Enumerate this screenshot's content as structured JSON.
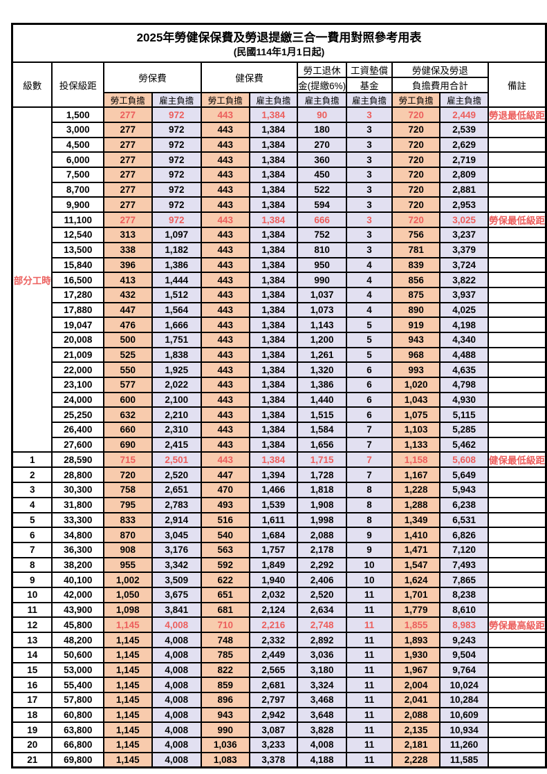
{
  "title": "2025年勞健保保費及勞退提繳三合一費用對照參考用表",
  "subtitle": "(民國114年1月1日起)",
  "header": {
    "level": "級數",
    "bracket": "投保級距",
    "labor_ins": "勞保費",
    "health_ins": "健保費",
    "pension_line1": "勞工退休",
    "pension_line2": "金(提繳6%)",
    "arrears_line1": "工資墊償",
    "arrears_line2": "基金",
    "total_line1": "勞健保及勞退",
    "total_line2": "負擔費用合計",
    "employee": "勞工負擔",
    "employer": "雇主負擔",
    "remark": "備註"
  },
  "side_label": "部分工時",
  "colors": {
    "employee_bg": "#F8CBAD",
    "employer_bg": "#E2E0F1",
    "highlight_text": "#EC5E5C",
    "border": "#000000"
  },
  "rows": [
    {
      "level": "",
      "bracket": "1,500",
      "labor_emp": "277",
      "labor_er": "972",
      "health_emp": "443",
      "health_er": "1,384",
      "pension": "90",
      "arrears": "3",
      "total_emp": "720",
      "total_er": "2,449",
      "remark": "勞退最低級距",
      "highlight": true
    },
    {
      "level": "",
      "bracket": "3,000",
      "labor_emp": "277",
      "labor_er": "972",
      "health_emp": "443",
      "health_er": "1,384",
      "pension": "180",
      "arrears": "3",
      "total_emp": "720",
      "total_er": "2,539",
      "remark": "",
      "highlight": false
    },
    {
      "level": "",
      "bracket": "4,500",
      "labor_emp": "277",
      "labor_er": "972",
      "health_emp": "443",
      "health_er": "1,384",
      "pension": "270",
      "arrears": "3",
      "total_emp": "720",
      "total_er": "2,629",
      "remark": "",
      "highlight": false
    },
    {
      "level": "",
      "bracket": "6,000",
      "labor_emp": "277",
      "labor_er": "972",
      "health_emp": "443",
      "health_er": "1,384",
      "pension": "360",
      "arrears": "3",
      "total_emp": "720",
      "total_er": "2,719",
      "remark": "",
      "highlight": false
    },
    {
      "level": "",
      "bracket": "7,500",
      "labor_emp": "277",
      "labor_er": "972",
      "health_emp": "443",
      "health_er": "1,384",
      "pension": "450",
      "arrears": "3",
      "total_emp": "720",
      "total_er": "2,809",
      "remark": "",
      "highlight": false
    },
    {
      "level": "",
      "bracket": "8,700",
      "labor_emp": "277",
      "labor_er": "972",
      "health_emp": "443",
      "health_er": "1,384",
      "pension": "522",
      "arrears": "3",
      "total_emp": "720",
      "total_er": "2,881",
      "remark": "",
      "highlight": false
    },
    {
      "level": "",
      "bracket": "9,900",
      "labor_emp": "277",
      "labor_er": "972",
      "health_emp": "443",
      "health_er": "1,384",
      "pension": "594",
      "arrears": "3",
      "total_emp": "720",
      "total_er": "2,953",
      "remark": "",
      "highlight": false
    },
    {
      "level": "",
      "bracket": "11,100",
      "labor_emp": "277",
      "labor_er": "972",
      "health_emp": "443",
      "health_er": "1,384",
      "pension": "666",
      "arrears": "3",
      "total_emp": "720",
      "total_er": "3,025",
      "remark": "勞保最低級距",
      "highlight": true
    },
    {
      "level": "",
      "bracket": "12,540",
      "labor_emp": "313",
      "labor_er": "1,097",
      "health_emp": "443",
      "health_er": "1,384",
      "pension": "752",
      "arrears": "3",
      "total_emp": "756",
      "total_er": "3,237",
      "remark": "",
      "highlight": false
    },
    {
      "level": "",
      "bracket": "13,500",
      "labor_emp": "338",
      "labor_er": "1,182",
      "health_emp": "443",
      "health_er": "1,384",
      "pension": "810",
      "arrears": "3",
      "total_emp": "781",
      "total_er": "3,379",
      "remark": "",
      "highlight": false
    },
    {
      "level": "",
      "bracket": "15,840",
      "labor_emp": "396",
      "labor_er": "1,386",
      "health_emp": "443",
      "health_er": "1,384",
      "pension": "950",
      "arrears": "4",
      "total_emp": "839",
      "total_er": "3,724",
      "remark": "",
      "highlight": false
    },
    {
      "level": "",
      "bracket": "16,500",
      "labor_emp": "413",
      "labor_er": "1,444",
      "health_emp": "443",
      "health_er": "1,384",
      "pension": "990",
      "arrears": "4",
      "total_emp": "856",
      "total_er": "3,822",
      "remark": "",
      "highlight": false
    },
    {
      "level": "",
      "bracket": "17,280",
      "labor_emp": "432",
      "labor_er": "1,512",
      "health_emp": "443",
      "health_er": "1,384",
      "pension": "1,037",
      "arrears": "4",
      "total_emp": "875",
      "total_er": "3,937",
      "remark": "",
      "highlight": false
    },
    {
      "level": "",
      "bracket": "17,880",
      "labor_emp": "447",
      "labor_er": "1,564",
      "health_emp": "443",
      "health_er": "1,384",
      "pension": "1,073",
      "arrears": "4",
      "total_emp": "890",
      "total_er": "4,025",
      "remark": "",
      "highlight": false
    },
    {
      "level": "",
      "bracket": "19,047",
      "labor_emp": "476",
      "labor_er": "1,666",
      "health_emp": "443",
      "health_er": "1,384",
      "pension": "1,143",
      "arrears": "5",
      "total_emp": "919",
      "total_er": "4,198",
      "remark": "",
      "highlight": false
    },
    {
      "level": "",
      "bracket": "20,008",
      "labor_emp": "500",
      "labor_er": "1,751",
      "health_emp": "443",
      "health_er": "1,384",
      "pension": "1,200",
      "arrears": "5",
      "total_emp": "943",
      "total_er": "4,340",
      "remark": "",
      "highlight": false
    },
    {
      "level": "",
      "bracket": "21,009",
      "labor_emp": "525",
      "labor_er": "1,838",
      "health_emp": "443",
      "health_er": "1,384",
      "pension": "1,261",
      "arrears": "5",
      "total_emp": "968",
      "total_er": "4,488",
      "remark": "",
      "highlight": false
    },
    {
      "level": "",
      "bracket": "22,000",
      "labor_emp": "550",
      "labor_er": "1,925",
      "health_emp": "443",
      "health_er": "1,384",
      "pension": "1,320",
      "arrears": "6",
      "total_emp": "993",
      "total_er": "4,635",
      "remark": "",
      "highlight": false
    },
    {
      "level": "",
      "bracket": "23,100",
      "labor_emp": "577",
      "labor_er": "2,022",
      "health_emp": "443",
      "health_er": "1,384",
      "pension": "1,386",
      "arrears": "6",
      "total_emp": "1,020",
      "total_er": "4,798",
      "remark": "",
      "highlight": false
    },
    {
      "level": "",
      "bracket": "24,000",
      "labor_emp": "600",
      "labor_er": "2,100",
      "health_emp": "443",
      "health_er": "1,384",
      "pension": "1,440",
      "arrears": "6",
      "total_emp": "1,043",
      "total_er": "4,930",
      "remark": "",
      "highlight": false
    },
    {
      "level": "",
      "bracket": "25,250",
      "labor_emp": "632",
      "labor_er": "2,210",
      "health_emp": "443",
      "health_er": "1,384",
      "pension": "1,515",
      "arrears": "6",
      "total_emp": "1,075",
      "total_er": "5,115",
      "remark": "",
      "highlight": false
    },
    {
      "level": "",
      "bracket": "26,400",
      "labor_emp": "660",
      "labor_er": "2,310",
      "health_emp": "443",
      "health_er": "1,384",
      "pension": "1,584",
      "arrears": "7",
      "total_emp": "1,103",
      "total_er": "5,285",
      "remark": "",
      "highlight": false
    },
    {
      "level": "",
      "bracket": "27,600",
      "labor_emp": "690",
      "labor_er": "2,415",
      "health_emp": "443",
      "health_er": "1,384",
      "pension": "1,656",
      "arrears": "7",
      "total_emp": "1,133",
      "total_er": "5,462",
      "remark": "",
      "highlight": false
    },
    {
      "level": "1",
      "bracket": "28,590",
      "labor_emp": "715",
      "labor_er": "2,501",
      "health_emp": "443",
      "health_er": "1,384",
      "pension": "1,715",
      "arrears": "7",
      "total_emp": "1,158",
      "total_er": "5,608",
      "remark": "健保最低級距",
      "highlight": true
    },
    {
      "level": "2",
      "bracket": "28,800",
      "labor_emp": "720",
      "labor_er": "2,520",
      "health_emp": "447",
      "health_er": "1,394",
      "pension": "1,728",
      "arrears": "7",
      "total_emp": "1,167",
      "total_er": "5,649",
      "remark": "",
      "highlight": false
    },
    {
      "level": "3",
      "bracket": "30,300",
      "labor_emp": "758",
      "labor_er": "2,651",
      "health_emp": "470",
      "health_er": "1,466",
      "pension": "1,818",
      "arrears": "8",
      "total_emp": "1,228",
      "total_er": "5,943",
      "remark": "",
      "highlight": false
    },
    {
      "level": "4",
      "bracket": "31,800",
      "labor_emp": "795",
      "labor_er": "2,783",
      "health_emp": "493",
      "health_er": "1,539",
      "pension": "1,908",
      "arrears": "8",
      "total_emp": "1,288",
      "total_er": "6,238",
      "remark": "",
      "highlight": false
    },
    {
      "level": "5",
      "bracket": "33,300",
      "labor_emp": "833",
      "labor_er": "2,914",
      "health_emp": "516",
      "health_er": "1,611",
      "pension": "1,998",
      "arrears": "8",
      "total_emp": "1,349",
      "total_er": "6,531",
      "remark": "",
      "highlight": false
    },
    {
      "level": "6",
      "bracket": "34,800",
      "labor_emp": "870",
      "labor_er": "3,045",
      "health_emp": "540",
      "health_er": "1,684",
      "pension": "2,088",
      "arrears": "9",
      "total_emp": "1,410",
      "total_er": "6,826",
      "remark": "",
      "highlight": false
    },
    {
      "level": "7",
      "bracket": "36,300",
      "labor_emp": "908",
      "labor_er": "3,176",
      "health_emp": "563",
      "health_er": "1,757",
      "pension": "2,178",
      "arrears": "9",
      "total_emp": "1,471",
      "total_er": "7,120",
      "remark": "",
      "highlight": false
    },
    {
      "level": "8",
      "bracket": "38,200",
      "labor_emp": "955",
      "labor_er": "3,342",
      "health_emp": "592",
      "health_er": "1,849",
      "pension": "2,292",
      "arrears": "10",
      "total_emp": "1,547",
      "total_er": "7,493",
      "remark": "",
      "highlight": false
    },
    {
      "level": "9",
      "bracket": "40,100",
      "labor_emp": "1,002",
      "labor_er": "3,509",
      "health_emp": "622",
      "health_er": "1,940",
      "pension": "2,406",
      "arrears": "10",
      "total_emp": "1,624",
      "total_er": "7,865",
      "remark": "",
      "highlight": false
    },
    {
      "level": "10",
      "bracket": "42,000",
      "labor_emp": "1,050",
      "labor_er": "3,675",
      "health_emp": "651",
      "health_er": "2,032",
      "pension": "2,520",
      "arrears": "11",
      "total_emp": "1,701",
      "total_er": "8,238",
      "remark": "",
      "highlight": false
    },
    {
      "level": "11",
      "bracket": "43,900",
      "labor_emp": "1,098",
      "labor_er": "3,841",
      "health_emp": "681",
      "health_er": "2,124",
      "pension": "2,634",
      "arrears": "11",
      "total_emp": "1,779",
      "total_er": "8,610",
      "remark": "",
      "highlight": false
    },
    {
      "level": "12",
      "bracket": "45,800",
      "labor_emp": "1,145",
      "labor_er": "4,008",
      "health_emp": "710",
      "health_er": "2,216",
      "pension": "2,748",
      "arrears": "11",
      "total_emp": "1,855",
      "total_er": "8,983",
      "remark": "勞保最高級距",
      "highlight": true
    },
    {
      "level": "13",
      "bracket": "48,200",
      "labor_emp": "1,145",
      "labor_er": "4,008",
      "health_emp": "748",
      "health_er": "2,332",
      "pension": "2,892",
      "arrears": "11",
      "total_emp": "1,893",
      "total_er": "9,243",
      "remark": "",
      "highlight": false
    },
    {
      "level": "14",
      "bracket": "50,600",
      "labor_emp": "1,145",
      "labor_er": "4,008",
      "health_emp": "785",
      "health_er": "2,449",
      "pension": "3,036",
      "arrears": "11",
      "total_emp": "1,930",
      "total_er": "9,504",
      "remark": "",
      "highlight": false
    },
    {
      "level": "15",
      "bracket": "53,000",
      "labor_emp": "1,145",
      "labor_er": "4,008",
      "health_emp": "822",
      "health_er": "2,565",
      "pension": "3,180",
      "arrears": "11",
      "total_emp": "1,967",
      "total_er": "9,764",
      "remark": "",
      "highlight": false
    },
    {
      "level": "16",
      "bracket": "55,400",
      "labor_emp": "1,145",
      "labor_er": "4,008",
      "health_emp": "859",
      "health_er": "2,681",
      "pension": "3,324",
      "arrears": "11",
      "total_emp": "2,004",
      "total_er": "10,024",
      "remark": "",
      "highlight": false
    },
    {
      "level": "17",
      "bracket": "57,800",
      "labor_emp": "1,145",
      "labor_er": "4,008",
      "health_emp": "896",
      "health_er": "2,797",
      "pension": "3,468",
      "arrears": "11",
      "total_emp": "2,041",
      "total_er": "10,284",
      "remark": "",
      "highlight": false
    },
    {
      "level": "18",
      "bracket": "60,800",
      "labor_emp": "1,145",
      "labor_er": "4,008",
      "health_emp": "943",
      "health_er": "2,942",
      "pension": "3,648",
      "arrears": "11",
      "total_emp": "2,088",
      "total_er": "10,609",
      "remark": "",
      "highlight": false
    },
    {
      "level": "19",
      "bracket": "63,800",
      "labor_emp": "1,145",
      "labor_er": "4,008",
      "health_emp": "990",
      "health_er": "3,087",
      "pension": "3,828",
      "arrears": "11",
      "total_emp": "2,135",
      "total_er": "10,934",
      "remark": "",
      "highlight": false
    },
    {
      "level": "20",
      "bracket": "66,800",
      "labor_emp": "1,145",
      "labor_er": "4,008",
      "health_emp": "1,036",
      "health_er": "3,233",
      "pension": "4,008",
      "arrears": "11",
      "total_emp": "2,181",
      "total_er": "11,260",
      "remark": "",
      "highlight": false
    },
    {
      "level": "21",
      "bracket": "69,800",
      "labor_emp": "1,145",
      "labor_er": "4,008",
      "health_emp": "1,083",
      "health_er": "3,378",
      "pension": "4,188",
      "arrears": "11",
      "total_emp": "2,228",
      "total_er": "11,585",
      "remark": "",
      "highlight": false
    }
  ]
}
